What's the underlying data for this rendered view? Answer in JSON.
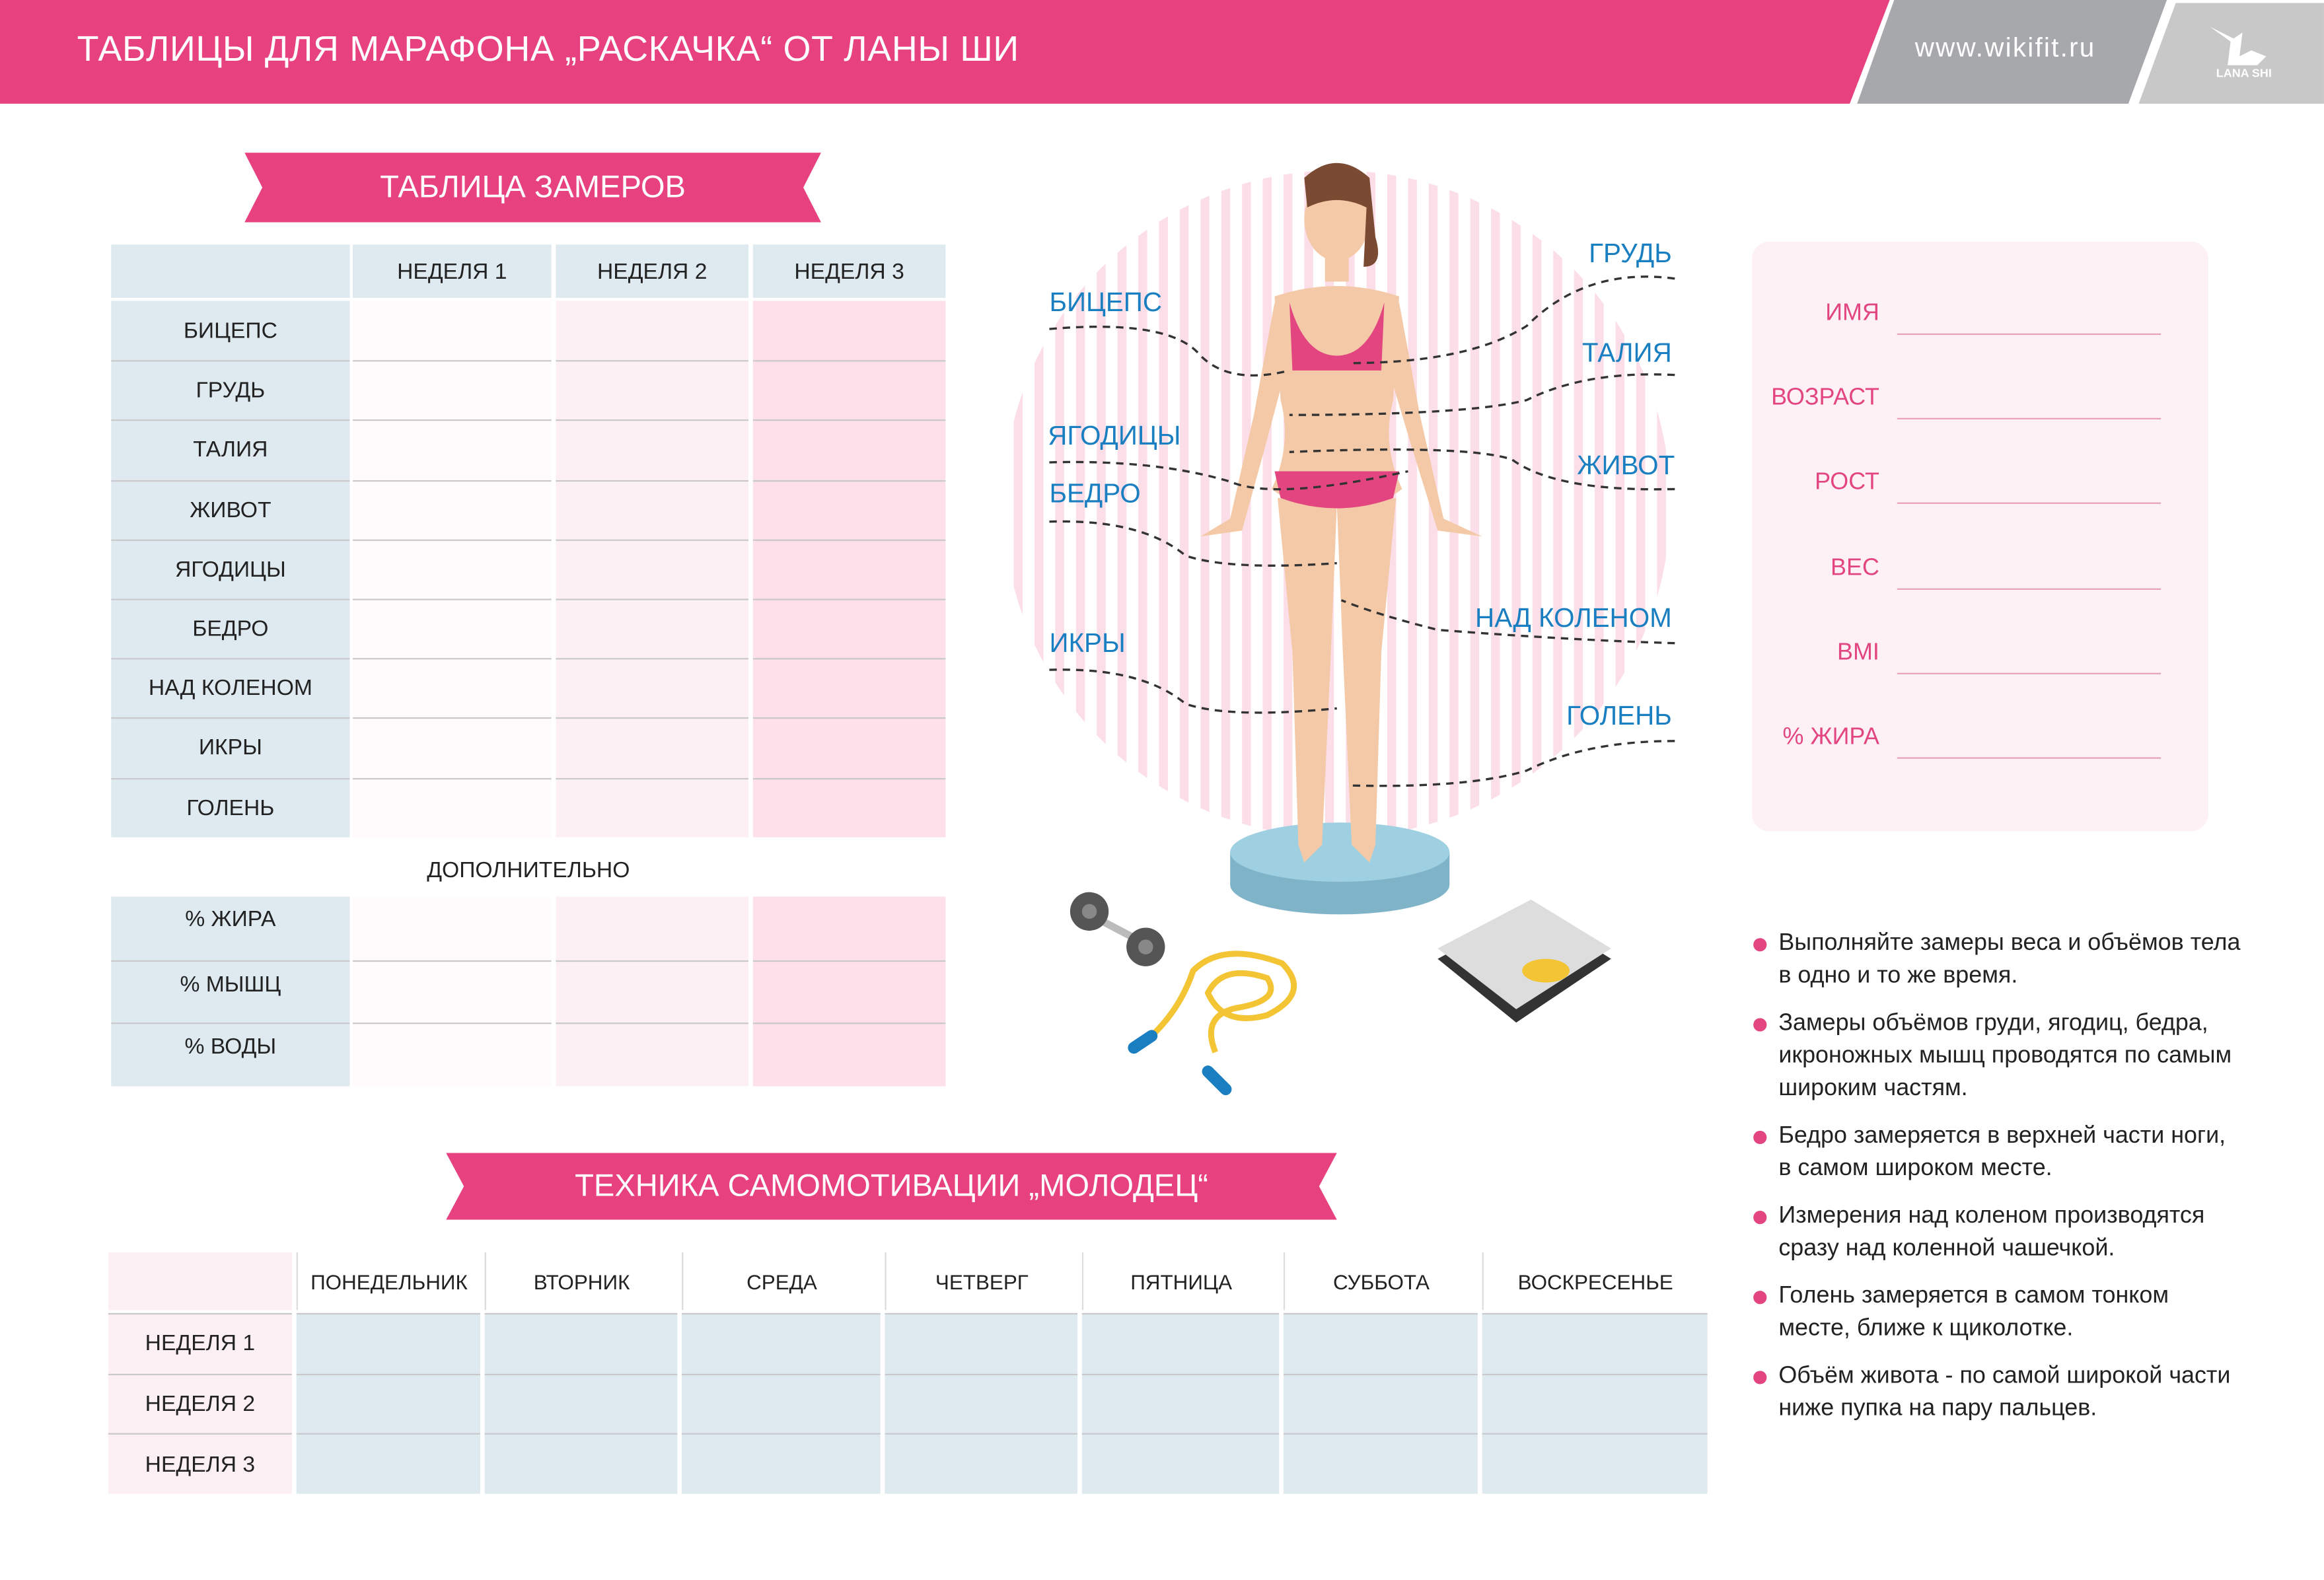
{
  "header": {
    "title": "ТАБЛИЦЫ ДЛЯ МАРАФОНА „РАСКАЧКА“ ОТ ЛАНЫ ШИ",
    "site": "www.wikifit.ru",
    "logo_text": "LANA SHI"
  },
  "colors": {
    "accent": "#e8417f",
    "blue_label": "#1a7fc1",
    "header_gray": "#a7a8ab"
  },
  "measurements": {
    "title": "ТАБЛИЦА ЗАМЕРОВ",
    "columns": [
      "НЕДЕЛЯ 1",
      "НЕДЕЛЯ 2",
      "НЕДЕЛЯ 3"
    ],
    "rows": [
      "БИЦЕПС",
      "ГРУДЬ",
      "ТАЛИЯ",
      "ЖИВОТ",
      "ЯГОДИЦЫ",
      "БЕДРО",
      "НАД КОЛЕНОМ",
      "ИКРЫ",
      "ГОЛЕНЬ"
    ],
    "extra_title": "ДОПОЛНИТЕЛЬНО",
    "extra_rows": [
      "% ЖИРА",
      "% МЫШЦ",
      "% ВОДЫ"
    ]
  },
  "body_labels": {
    "left": [
      "БИЦЕПС",
      "ЯГОДИЦЫ",
      "БЕДРО",
      "ИКРЫ"
    ],
    "right": [
      "ГРУДЬ",
      "ТАЛИЯ",
      "ЖИВОТ",
      "НАД КОЛЕНОМ",
      "ГОЛЕНЬ"
    ]
  },
  "info": {
    "fields": [
      "ИМЯ",
      "ВОЗРАСТ",
      "РОСТ",
      "ВЕС",
      "BMI",
      "% ЖИРА"
    ]
  },
  "tips": [
    "Выполняйте замеры веса и объёмов тела в одно и то же время.",
    "Замеры объёмов груди, ягодиц, бедра, икроножных мышц проводятся по самым широким частям.",
    "Бедро замеряется в верхней части ноги, в самом широком месте.",
    "Измерения над коленом производятся сразу над коленной чашечкой.",
    "Голень замеряется в самом тонком месте, ближе к щиколотке.",
    "Объём живота - по самой широкой части ниже пупка на пару пальцев."
  ],
  "motivation": {
    "title": "ТЕХНИКА САМОМОТИВАЦИИ „МОЛОДЕЦ“",
    "columns": [
      "ПОНЕДЕЛЬНИК",
      "ВТОРНИК",
      "СРЕДА",
      "ЧЕТВЕРГ",
      "ПЯТНИЦА",
      "СУББОТА",
      "ВОСКРЕСЕНЬЕ"
    ],
    "rows": [
      "НЕДЕЛЯ 1",
      "НЕДЕЛЯ 2",
      "НЕДЕЛЯ 3"
    ]
  }
}
